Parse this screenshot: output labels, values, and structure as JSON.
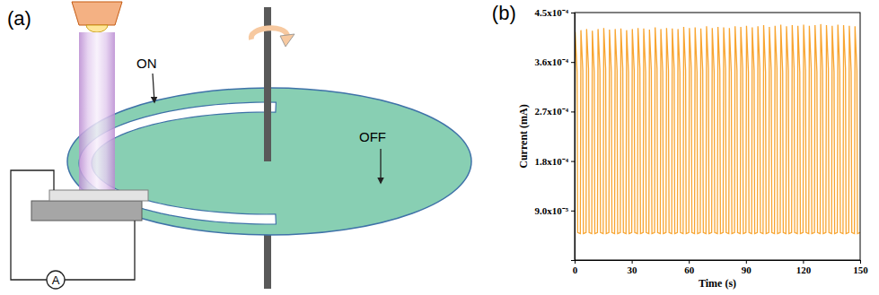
{
  "diagram": {
    "panel_label": "(a)",
    "on_label": "ON",
    "off_label": "OFF",
    "meter_label": "A"
  },
  "chart_data": {
    "panel_label": "(b)",
    "type": "line",
    "x_label": "Time (s)",
    "y_label": "Current (mA)",
    "color": "#f8a531",
    "xlim": [
      0,
      150
    ],
    "xticks": [
      0,
      30,
      60,
      90,
      120,
      150
    ],
    "ylim": [
      0,
      0.00045
    ],
    "yticks": [
      {
        "value": 9e-05,
        "label": "9.0x10⁻⁵"
      },
      {
        "value": 0.00018,
        "label": "1.8x10⁻⁴"
      },
      {
        "value": 0.00027,
        "label": "2.7x10⁻⁴"
      },
      {
        "value": 0.00036,
        "label": "3.6x10⁻⁴"
      },
      {
        "value": 0.00045,
        "label": "4.5x10⁻⁴"
      }
    ],
    "x": [
      0,
      0.3,
      1.3,
      1.6,
      3,
      3.3,
      4.3,
      4.6,
      6,
      6.3,
      7.3,
      7.6,
      9,
      9.3,
      10.3,
      10.6,
      12,
      12.3,
      13.3,
      13.6,
      15,
      15.3,
      16.3,
      16.6,
      18,
      18.3,
      19.3,
      19.6,
      21,
      21.3,
      22.3,
      22.6,
      24,
      24.3,
      25.3,
      25.6,
      27,
      27.3,
      28.3,
      28.6,
      30,
      30.3,
      31.3,
      31.6,
      33,
      33.3,
      34.3,
      34.6,
      36,
      36.3,
      37.3,
      37.6,
      39,
      39.3,
      40.3,
      40.6,
      42,
      42.3,
      43.3,
      43.6,
      45,
      45.3,
      46.3,
      46.6,
      48,
      48.3,
      49.3,
      49.6,
      51,
      51.3,
      52.3,
      52.6,
      54,
      54.3,
      55.3,
      55.6,
      57,
      57.3,
      58.3,
      58.6,
      60,
      60.3,
      61.3,
      61.6,
      63,
      63.3,
      64.3,
      64.6,
      66,
      66.3,
      67.3,
      67.6,
      69,
      69.3,
      70.3,
      70.6,
      72,
      72.3,
      73.3,
      73.6,
      75,
      75.3,
      76.3,
      76.6,
      78,
      78.3,
      79.3,
      79.6,
      81,
      81.3,
      82.3,
      82.6,
      84,
      84.3,
      85.3,
      85.6,
      87,
      87.3,
      88.3,
      88.6,
      90,
      90.3,
      91.3,
      91.6,
      93,
      93.3,
      94.3,
      94.6,
      96,
      96.3,
      97.3,
      97.6,
      99,
      99.3,
      100.3,
      100.6,
      102,
      102.3,
      103.3,
      103.6,
      105,
      105.3,
      106.3,
      106.6,
      108,
      108.3,
      109.3,
      109.6,
      111,
      111.3,
      112.3,
      112.6,
      114,
      114.3,
      115.3,
      115.6,
      117,
      117.3,
      118.3,
      118.6,
      120,
      120.3,
      121.3,
      121.6,
      123,
      123.3,
      124.3,
      124.6,
      126,
      126.3,
      127.3,
      127.6,
      129,
      129.3,
      130.3,
      130.6,
      132,
      132.3,
      133.3,
      133.6,
      135,
      135.3,
      136.3,
      136.6,
      138,
      138.3,
      139.3,
      139.6,
      141,
      141.3,
      142.3,
      142.6,
      144,
      144.3,
      145.3,
      145.6,
      147,
      147.3,
      148.3,
      148.6,
      150
    ],
    "values": [
      5e-05,
      0.000415,
      0.000342,
      5e-05,
      4.8e-05,
      0.000418,
      0.000345,
      4.8e-05,
      5e-05,
      0.00042,
      0.000348,
      5e-05,
      4.8e-05,
      0.000417,
      0.000342,
      4.8e-05,
      5e-05,
      0.00042,
      0.000345,
      5e-05,
      4.8e-05,
      0.000422,
      0.000348,
      4.8e-05,
      5e-05,
      0.000419,
      0.000342,
      5e-05,
      4.8e-05,
      0.00042,
      0.000345,
      4.8e-05,
      5e-05,
      0.000421,
      0.000348,
      5e-05,
      4.8e-05,
      0.000418,
      0.000342,
      4.8e-05,
      5e-05,
      0.00042,
      0.000345,
      5e-05,
      4.8e-05,
      0.000422,
      0.000348,
      4.8e-05,
      5e-05,
      0.000421,
      0.000342,
      5e-05,
      4.8e-05,
      0.000419,
      0.000345,
      4.8e-05,
      5e-05,
      0.000423,
      0.000348,
      5e-05,
      4.8e-05,
      0.00042,
      0.000342,
      4.8e-05,
      5e-05,
      0.000422,
      0.000345,
      5e-05,
      4.8e-05,
      0.000421,
      0.000348,
      4.8e-05,
      5e-05,
      0.00042,
      0.000342,
      5e-05,
      4.8e-05,
      0.000424,
      0.000345,
      4.8e-05,
      5e-05,
      0.000422,
      0.000348,
      5e-05,
      4.8e-05,
      0.000423,
      0.000342,
      4.8e-05,
      5e-05,
      0.000421,
      0.000345,
      5e-05,
      4.8e-05,
      0.000425,
      0.000348,
      4.8e-05,
      5e-05,
      0.000422,
      0.000342,
      5e-05,
      4.8e-05,
      0.000424,
      0.000345,
      4.8e-05,
      5e-05,
      0.000423,
      0.000348,
      5e-05,
      4.8e-05,
      0.000422,
      0.000342,
      4.8e-05,
      5e-05,
      0.000425,
      0.000345,
      5e-05,
      4.8e-05,
      0.000424,
      0.000348,
      4.8e-05,
      5e-05,
      0.000426,
      0.000342,
      5e-05,
      4.8e-05,
      0.000423,
      0.000345,
      4.8e-05,
      5e-05,
      0.000425,
      0.000348,
      5e-05,
      4.8e-05,
      0.000427,
      0.000342,
      4.8e-05,
      5e-05,
      0.000424,
      0.000345,
      5e-05,
      4.8e-05,
      0.000426,
      0.000348,
      4.8e-05,
      5e-05,
      0.000428,
      0.000342,
      5e-05,
      4.8e-05,
      0.000425,
      0.000345,
      4.8e-05,
      5e-05,
      0.000427,
      0.000348,
      5e-05,
      4.8e-05,
      0.000426,
      0.000342,
      4.8e-05,
      5e-05,
      0.000428,
      0.000345,
      5e-05,
      4.8e-05,
      0.000426,
      0.000348,
      4.8e-05,
      5e-05,
      0.000427,
      0.000342,
      5e-05,
      4.8e-05,
      0.000429,
      0.000345,
      4.8e-05,
      5e-05,
      0.000427,
      0.000348,
      5e-05,
      4.8e-05,
      0.000426,
      0.000342,
      4.8e-05,
      5e-05,
      0.000428,
      0.000345,
      5e-05,
      4.8e-05,
      0.000427,
      0.000348,
      4.8e-05,
      5e-05,
      0.000426,
      0.000342,
      5e-05,
      4.8e-05,
      0.000425,
      0.000345,
      4.8e-05,
      5e-05
    ]
  }
}
